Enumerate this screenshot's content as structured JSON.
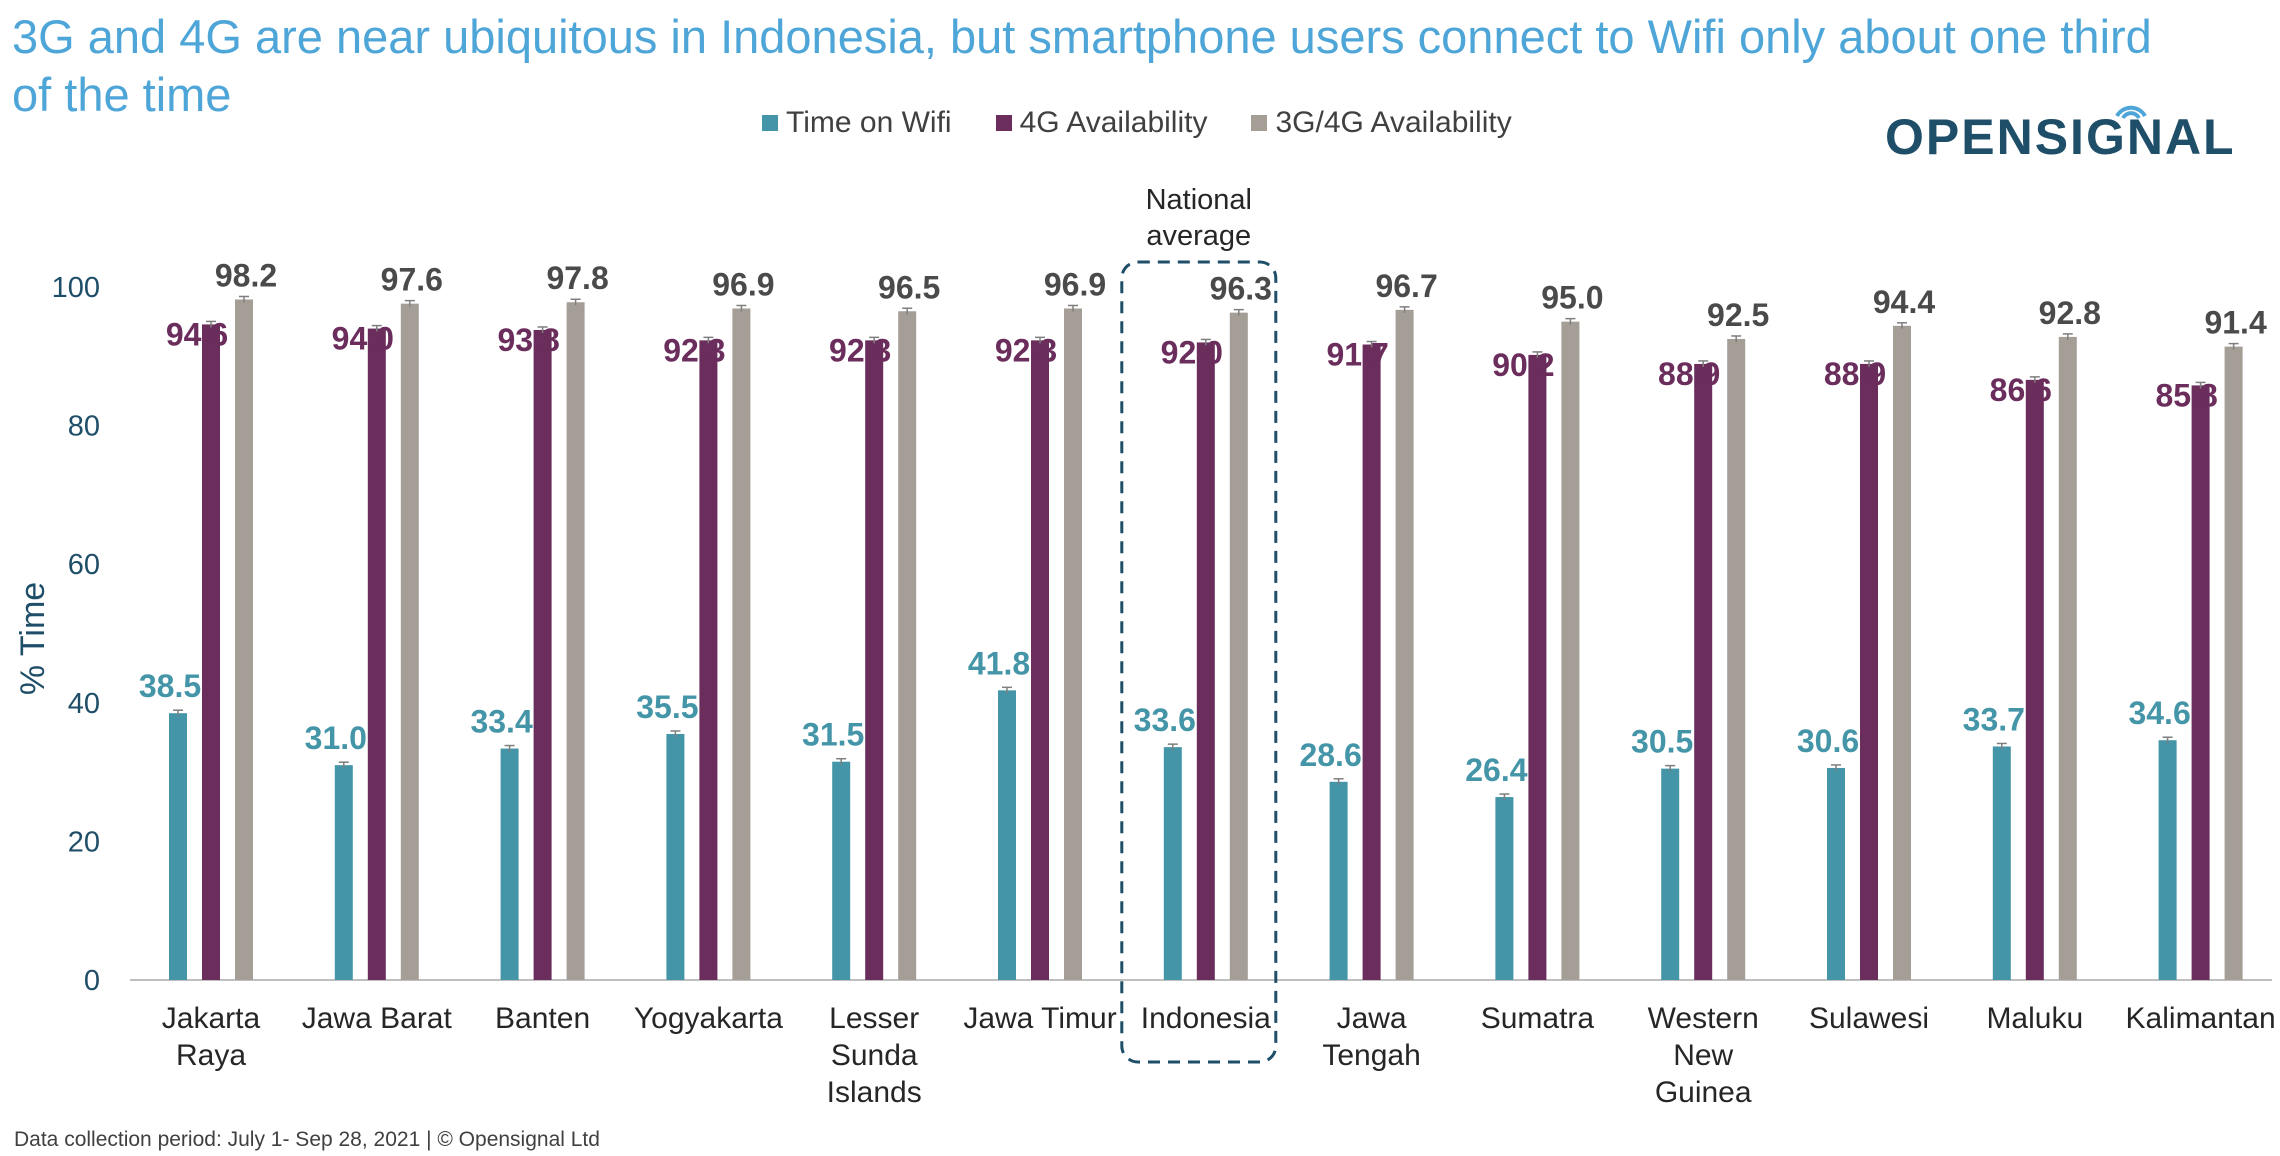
{
  "title": "3G and 4G are near ubiquitous in Indonesia, but smartphone users connect to Wifi only about one third of the time",
  "logo": {
    "text": "OPENSIGNAL"
  },
  "footnote": "Data collection period: July 1- Sep 28, 2021 | © Opensignal Ltd",
  "colors": {
    "wifi": "#4595a8",
    "g4": "#6a2d5c",
    "g34": "#a49e97",
    "axis": "#1f4e69",
    "title": "#4ea6d8"
  },
  "chart_data": {
    "type": "bar",
    "ylabel": "% Time",
    "ylim": [
      0,
      100
    ],
    "yticks": [
      "0",
      "20",
      "40",
      "60",
      "80",
      "100"
    ],
    "grid": false,
    "legend_position": "top",
    "categories": [
      [
        "Jakarta",
        "Raya"
      ],
      [
        "Jawa Barat"
      ],
      [
        "Banten"
      ],
      [
        "Yogyakarta"
      ],
      [
        "Lesser",
        "Sunda",
        "Islands"
      ],
      [
        "Jawa Timur"
      ],
      [
        "Indonesia"
      ],
      [
        "Jawa",
        "Tengah"
      ],
      [
        "Sumatra"
      ],
      [
        "Western",
        "New",
        "Guinea"
      ],
      [
        "Sulawesi"
      ],
      [
        "Maluku"
      ],
      [
        "Kalimantan"
      ]
    ],
    "series": [
      {
        "name": "Time on Wifi",
        "values": [
          38.5,
          31.0,
          33.4,
          35.5,
          31.5,
          41.8,
          33.6,
          28.6,
          26.4,
          30.5,
          30.6,
          33.7,
          34.6
        ],
        "labels": [
          "38.5",
          "31.0",
          "33.4",
          "35.5",
          "31.5",
          "41.8",
          "33.6",
          "28.6",
          "26.4",
          "30.5",
          "30.6",
          "33.7",
          "34.6"
        ]
      },
      {
        "name": "4G Availability",
        "values": [
          94.6,
          94.0,
          93.8,
          92.3,
          92.3,
          92.3,
          92.0,
          91.7,
          90.2,
          88.9,
          88.9,
          86.6,
          85.8
        ],
        "labels": [
          "94.6",
          "94.0",
          "93.8",
          "92.3",
          "92.3",
          "92.3",
          "92.0",
          "91.7",
          "90.2",
          "88.9",
          "88.9",
          "86.6",
          "85.8"
        ]
      },
      {
        "name": "3G/4G Availability",
        "values": [
          98.2,
          97.6,
          97.8,
          96.9,
          96.5,
          96.9,
          96.3,
          96.7,
          95.0,
          92.5,
          94.4,
          92.8,
          91.4
        ],
        "labels": [
          "98.2",
          "97.6",
          "97.8",
          "96.9",
          "96.5",
          "96.9",
          "96.3",
          "96.7",
          "95.0",
          "92.5",
          "94.4",
          "92.8",
          "91.4"
        ]
      }
    ],
    "annotation": {
      "lines": [
        "National",
        "average"
      ],
      "category_index": 6
    }
  }
}
